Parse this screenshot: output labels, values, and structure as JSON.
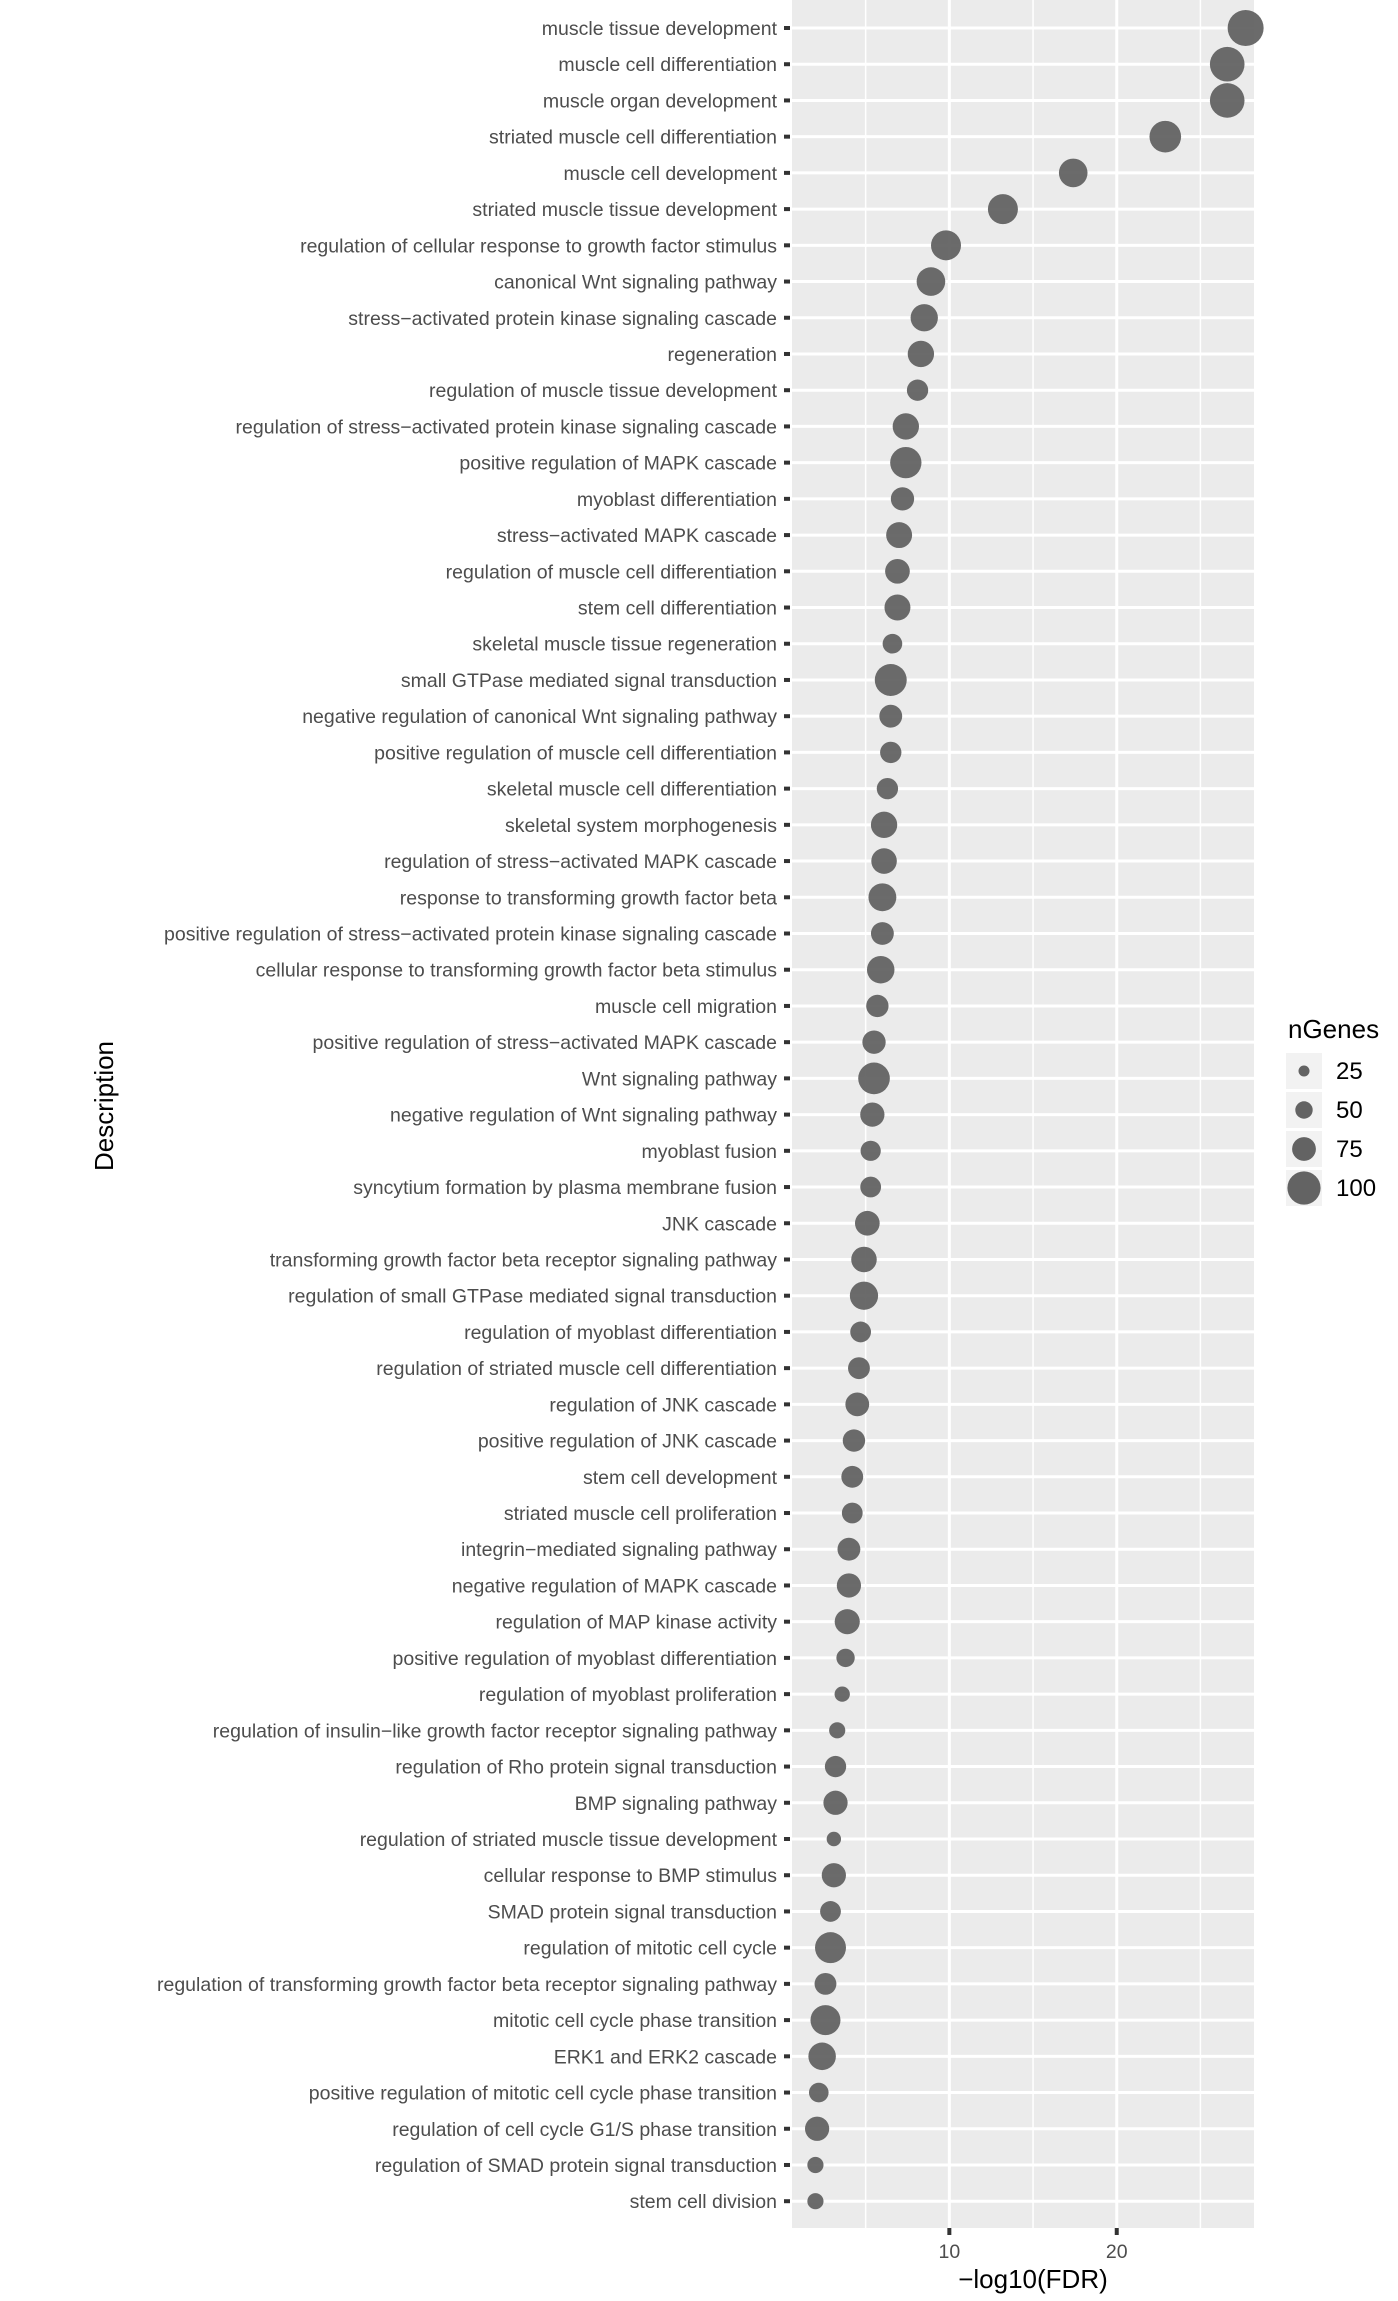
{
  "chart_data": {
    "type": "scatter",
    "subtype": "dot-plot",
    "title": "",
    "xlabel": "−log10(FDR)",
    "ylabel": "Description",
    "xlim": [
      0.6,
      28.2
    ],
    "x_ticks": [
      10,
      20
    ],
    "grid": true,
    "legend": {
      "title": "nGenes",
      "position": "right",
      "entries": [
        {
          "label": "25",
          "value": 25
        },
        {
          "label": "50",
          "value": 50
        },
        {
          "label": "75",
          "value": 75
        },
        {
          "label": "100",
          "value": 100
        }
      ]
    },
    "colors": {
      "point": "#636363",
      "panel": "#ebebeb",
      "grid": "#ffffff",
      "text": "#4d4d4d"
    },
    "points": [
      {
        "description": "muscle tissue development",
        "neg_log10_fdr": 27.7,
        "ngenes": 110
      },
      {
        "description": "muscle cell differentiation",
        "neg_log10_fdr": 26.6,
        "ngenes": 100
      },
      {
        "description": "muscle organ development",
        "neg_log10_fdr": 26.6,
        "ngenes": 100
      },
      {
        "description": "striated muscle cell differentiation",
        "neg_log10_fdr": 22.9,
        "ngenes": 80
      },
      {
        "description": "muscle cell development",
        "neg_log10_fdr": 17.4,
        "ngenes": 62
      },
      {
        "description": "striated muscle tissue development",
        "neg_log10_fdr": 13.2,
        "ngenes": 70
      },
      {
        "description": "regulation of cellular response to growth factor stimulus",
        "neg_log10_fdr": 9.8,
        "ngenes": 70
      },
      {
        "description": "canonical Wnt signaling pathway",
        "neg_log10_fdr": 8.9,
        "ngenes": 62
      },
      {
        "description": "stress−activated protein kinase signaling cascade",
        "neg_log10_fdr": 8.5,
        "ngenes": 55
      },
      {
        "description": "regeneration",
        "neg_log10_fdr": 8.3,
        "ngenes": 50
      },
      {
        "description": "regulation of muscle tissue development",
        "neg_log10_fdr": 8.1,
        "ngenes": 28
      },
      {
        "description": "regulation of stress−activated protein kinase signaling cascade",
        "neg_log10_fdr": 7.4,
        "ngenes": 50
      },
      {
        "description": "positive regulation of MAPK cascade",
        "neg_log10_fdr": 7.4,
        "ngenes": 78
      },
      {
        "description": "myoblast differentiation",
        "neg_log10_fdr": 7.2,
        "ngenes": 36
      },
      {
        "description": "stress−activated MAPK cascade",
        "neg_log10_fdr": 7.0,
        "ngenes": 48
      },
      {
        "description": "regulation of muscle cell differentiation",
        "neg_log10_fdr": 6.9,
        "ngenes": 42
      },
      {
        "description": "stem cell differentiation",
        "neg_log10_fdr": 6.9,
        "ngenes": 48
      },
      {
        "description": "skeletal muscle tissue regeneration",
        "neg_log10_fdr": 6.6,
        "ngenes": 22
      },
      {
        "description": "small GTPase mediated signal transduction",
        "neg_log10_fdr": 6.5,
        "ngenes": 82
      },
      {
        "description": "negative regulation of canonical Wnt signaling pathway",
        "neg_log10_fdr": 6.5,
        "ngenes": 34
      },
      {
        "description": "positive regulation of muscle cell differentiation",
        "neg_log10_fdr": 6.5,
        "ngenes": 28
      },
      {
        "description": "skeletal muscle cell differentiation",
        "neg_log10_fdr": 6.3,
        "ngenes": 28
      },
      {
        "description": "skeletal system morphogenesis",
        "neg_log10_fdr": 6.1,
        "ngenes": 50
      },
      {
        "description": "regulation of stress−activated MAPK cascade",
        "neg_log10_fdr": 6.1,
        "ngenes": 46
      },
      {
        "description": "response to transforming growth factor beta",
        "neg_log10_fdr": 6.0,
        "ngenes": 58
      },
      {
        "description": "positive regulation of stress−activated protein kinase signaling cascade",
        "neg_log10_fdr": 6.0,
        "ngenes": 34
      },
      {
        "description": "cellular response to transforming growth factor beta stimulus",
        "neg_log10_fdr": 5.9,
        "ngenes": 56
      },
      {
        "description": "muscle cell migration",
        "neg_log10_fdr": 5.7,
        "ngenes": 32
      },
      {
        "description": "positive regulation of stress−activated MAPK cascade",
        "neg_log10_fdr": 5.5,
        "ngenes": 36
      },
      {
        "description": "Wnt signaling pathway",
        "neg_log10_fdr": 5.5,
        "ngenes": 80
      },
      {
        "description": "negative regulation of Wnt signaling pathway",
        "neg_log10_fdr": 5.4,
        "ngenes": 40
      },
      {
        "description": "myoblast fusion",
        "neg_log10_fdr": 5.3,
        "ngenes": 24
      },
      {
        "description": "syncytium formation by plasma membrane fusion",
        "neg_log10_fdr": 5.3,
        "ngenes": 26
      },
      {
        "description": "JNK cascade",
        "neg_log10_fdr": 5.1,
        "ngenes": 42
      },
      {
        "description": "transforming growth factor beta receptor signaling pathway",
        "neg_log10_fdr": 4.9,
        "ngenes": 46
      },
      {
        "description": "regulation of small GTPase mediated signal transduction",
        "neg_log10_fdr": 4.9,
        "ngenes": 60
      },
      {
        "description": "regulation of myoblast differentiation",
        "neg_log10_fdr": 4.7,
        "ngenes": 26
      },
      {
        "description": "regulation of striated muscle cell differentiation",
        "neg_log10_fdr": 4.6,
        "ngenes": 30
      },
      {
        "description": "regulation of JNK cascade",
        "neg_log10_fdr": 4.5,
        "ngenes": 38
      },
      {
        "description": "positive regulation of JNK cascade",
        "neg_log10_fdr": 4.3,
        "ngenes": 32
      },
      {
        "description": "stem cell development",
        "neg_log10_fdr": 4.2,
        "ngenes": 30
      },
      {
        "description": "striated muscle cell proliferation",
        "neg_log10_fdr": 4.2,
        "ngenes": 26
      },
      {
        "description": "integrin−mediated signaling pathway",
        "neg_log10_fdr": 4.0,
        "ngenes": 34
      },
      {
        "description": "negative regulation of MAPK cascade",
        "neg_log10_fdr": 4.0,
        "ngenes": 40
      },
      {
        "description": "regulation of MAP kinase activity",
        "neg_log10_fdr": 3.9,
        "ngenes": 44
      },
      {
        "description": "positive regulation of myoblast differentiation",
        "neg_log10_fdr": 3.8,
        "ngenes": 18
      },
      {
        "description": "regulation of myoblast proliferation",
        "neg_log10_fdr": 3.6,
        "ngenes": 10
      },
      {
        "description": "regulation of insulin−like growth factor receptor signaling pathway",
        "neg_log10_fdr": 3.3,
        "ngenes": 12
      },
      {
        "description": "regulation of Rho protein signal transduction",
        "neg_log10_fdr": 3.2,
        "ngenes": 28
      },
      {
        "description": "BMP signaling pathway",
        "neg_log10_fdr": 3.2,
        "ngenes": 40
      },
      {
        "description": "regulation of striated muscle tissue development",
        "neg_log10_fdr": 3.1,
        "ngenes": 8
      },
      {
        "description": "cellular response to BMP stimulus",
        "neg_log10_fdr": 3.1,
        "ngenes": 40
      },
      {
        "description": "SMAD protein signal transduction",
        "neg_log10_fdr": 2.9,
        "ngenes": 26
      },
      {
        "description": "regulation of mitotic cell cycle",
        "neg_log10_fdr": 2.9,
        "ngenes": 76
      },
      {
        "description": "regulation of transforming growth factor beta receptor signaling pathway",
        "neg_log10_fdr": 2.6,
        "ngenes": 30
      },
      {
        "description": "mitotic cell cycle phase transition",
        "neg_log10_fdr": 2.6,
        "ngenes": 70
      },
      {
        "description": "ERK1 and ERK2 cascade",
        "neg_log10_fdr": 2.4,
        "ngenes": 56
      },
      {
        "description": "positive regulation of mitotic cell cycle phase transition",
        "neg_log10_fdr": 2.2,
        "ngenes": 22
      },
      {
        "description": "regulation of cell cycle G1/S phase transition",
        "neg_log10_fdr": 2.1,
        "ngenes": 40
      },
      {
        "description": "regulation of SMAD protein signal transduction",
        "neg_log10_fdr": 2.0,
        "ngenes": 12
      },
      {
        "description": "stem cell division",
        "neg_log10_fdr": 2.0,
        "ngenes": 12
      }
    ]
  }
}
